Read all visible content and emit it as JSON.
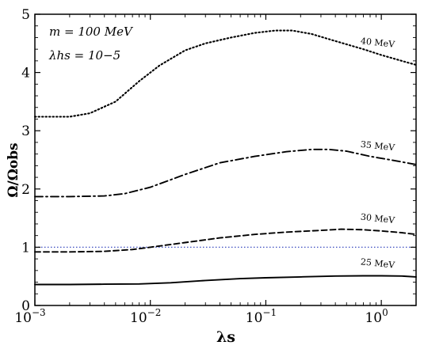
{
  "chart_data": {
    "type": "line",
    "xscale": "log",
    "xlim": [
      0.001,
      2
    ],
    "ylim": [
      0,
      5
    ],
    "xticks": [
      {
        "value": 0.001,
        "base": "10",
        "exp": "−3"
      },
      {
        "value": 0.01,
        "base": "10",
        "exp": "−2"
      },
      {
        "value": 0.1,
        "base": "10",
        "exp": "−1"
      },
      {
        "value": 1,
        "base": "10",
        "exp": "0"
      }
    ],
    "yticks": [
      {
        "value": 0,
        "label": "0"
      },
      {
        "value": 1,
        "label": "1"
      },
      {
        "value": 2,
        "label": "2"
      },
      {
        "value": 3,
        "label": "3"
      },
      {
        "value": 4,
        "label": "4"
      },
      {
        "value": 5,
        "label": "5"
      }
    ],
    "xlabel": "λs",
    "ylabel": "Ω/Ωobs",
    "annotations": [
      "m = 100 MeV",
      "λhs = 10−5"
    ],
    "grid": false,
    "reference_line": {
      "y": 1.0,
      "color": "#3b4cc0",
      "style": "dotted"
    },
    "series": [
      {
        "name": "25 MeV",
        "style": "solid",
        "x": [
          0.001,
          0.002,
          0.004,
          0.008,
          0.015,
          0.03,
          0.06,
          0.1,
          0.2,
          0.4,
          0.7,
          1.0,
          1.5,
          2.0
        ],
        "y": [
          0.36,
          0.36,
          0.365,
          0.37,
          0.39,
          0.43,
          0.46,
          0.475,
          0.49,
          0.505,
          0.51,
          0.51,
          0.505,
          0.49
        ]
      },
      {
        "name": "30 MeV",
        "style": "dashed",
        "x": [
          0.001,
          0.002,
          0.004,
          0.007,
          0.01,
          0.02,
          0.04,
          0.08,
          0.15,
          0.3,
          0.45,
          0.7,
          1.0,
          1.5,
          2.0
        ],
        "y": [
          0.92,
          0.92,
          0.93,
          0.96,
          1.0,
          1.08,
          1.16,
          1.22,
          1.26,
          1.29,
          1.31,
          1.3,
          1.28,
          1.25,
          1.22
        ]
      },
      {
        "name": "35 MeV",
        "style": "dashdot",
        "x": [
          0.001,
          0.002,
          0.004,
          0.006,
          0.01,
          0.02,
          0.04,
          0.08,
          0.15,
          0.25,
          0.35,
          0.5,
          0.8,
          1.2,
          2.0
        ],
        "y": [
          1.87,
          1.87,
          1.88,
          1.92,
          2.03,
          2.25,
          2.45,
          2.56,
          2.64,
          2.68,
          2.68,
          2.65,
          2.56,
          2.5,
          2.42
        ]
      },
      {
        "name": "40 MeV",
        "style": "dotted",
        "x": [
          0.001,
          0.002,
          0.003,
          0.005,
          0.008,
          0.012,
          0.02,
          0.03,
          0.05,
          0.08,
          0.12,
          0.17,
          0.25,
          0.4,
          0.7,
          1.0,
          1.5,
          2.0
        ],
        "y": [
          3.24,
          3.24,
          3.3,
          3.5,
          3.85,
          4.12,
          4.38,
          4.5,
          4.6,
          4.68,
          4.72,
          4.72,
          4.66,
          4.54,
          4.4,
          4.3,
          4.2,
          4.13
        ]
      }
    ]
  }
}
